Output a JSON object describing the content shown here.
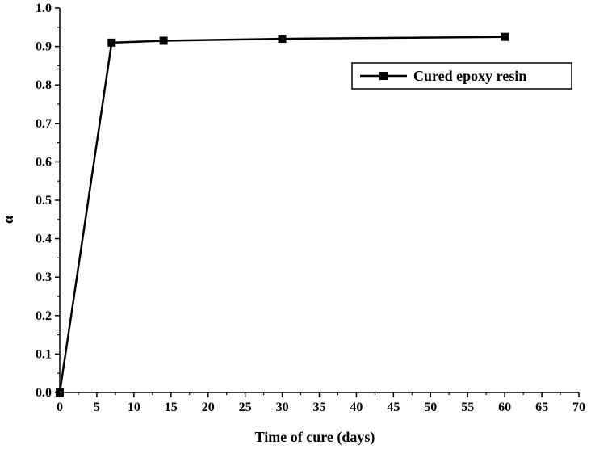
{
  "chart_data": {
    "type": "line",
    "title": "",
    "xlabel": "Time of cure (days)",
    "ylabel": "α",
    "xlim": [
      0,
      70
    ],
    "ylim": [
      0.0,
      1.0
    ],
    "x_ticks": [
      "0",
      "5",
      "10",
      "15",
      "20",
      "25",
      "30",
      "35",
      "40",
      "45",
      "50",
      "55",
      "60",
      "65",
      "70"
    ],
    "y_ticks": [
      "0.0",
      "0.1",
      "0.2",
      "0.3",
      "0.4",
      "0.5",
      "0.6",
      "0.7",
      "0.8",
      "0.9",
      "1.0"
    ],
    "x_tick_values": [
      0,
      5,
      10,
      15,
      20,
      25,
      30,
      35,
      40,
      45,
      50,
      55,
      60,
      65,
      70
    ],
    "y_tick_values": [
      0.0,
      0.1,
      0.2,
      0.3,
      0.4,
      0.5,
      0.6,
      0.7,
      0.8,
      0.9,
      1.0
    ],
    "grid": false,
    "legend_position": "top-right",
    "series": [
      {
        "name": "Cured epoxy resin",
        "color": "#000000",
        "marker": "square",
        "x": [
          0,
          7,
          14,
          30,
          60
        ],
        "y": [
          0.0,
          0.91,
          0.915,
          0.92,
          0.925
        ]
      }
    ]
  }
}
